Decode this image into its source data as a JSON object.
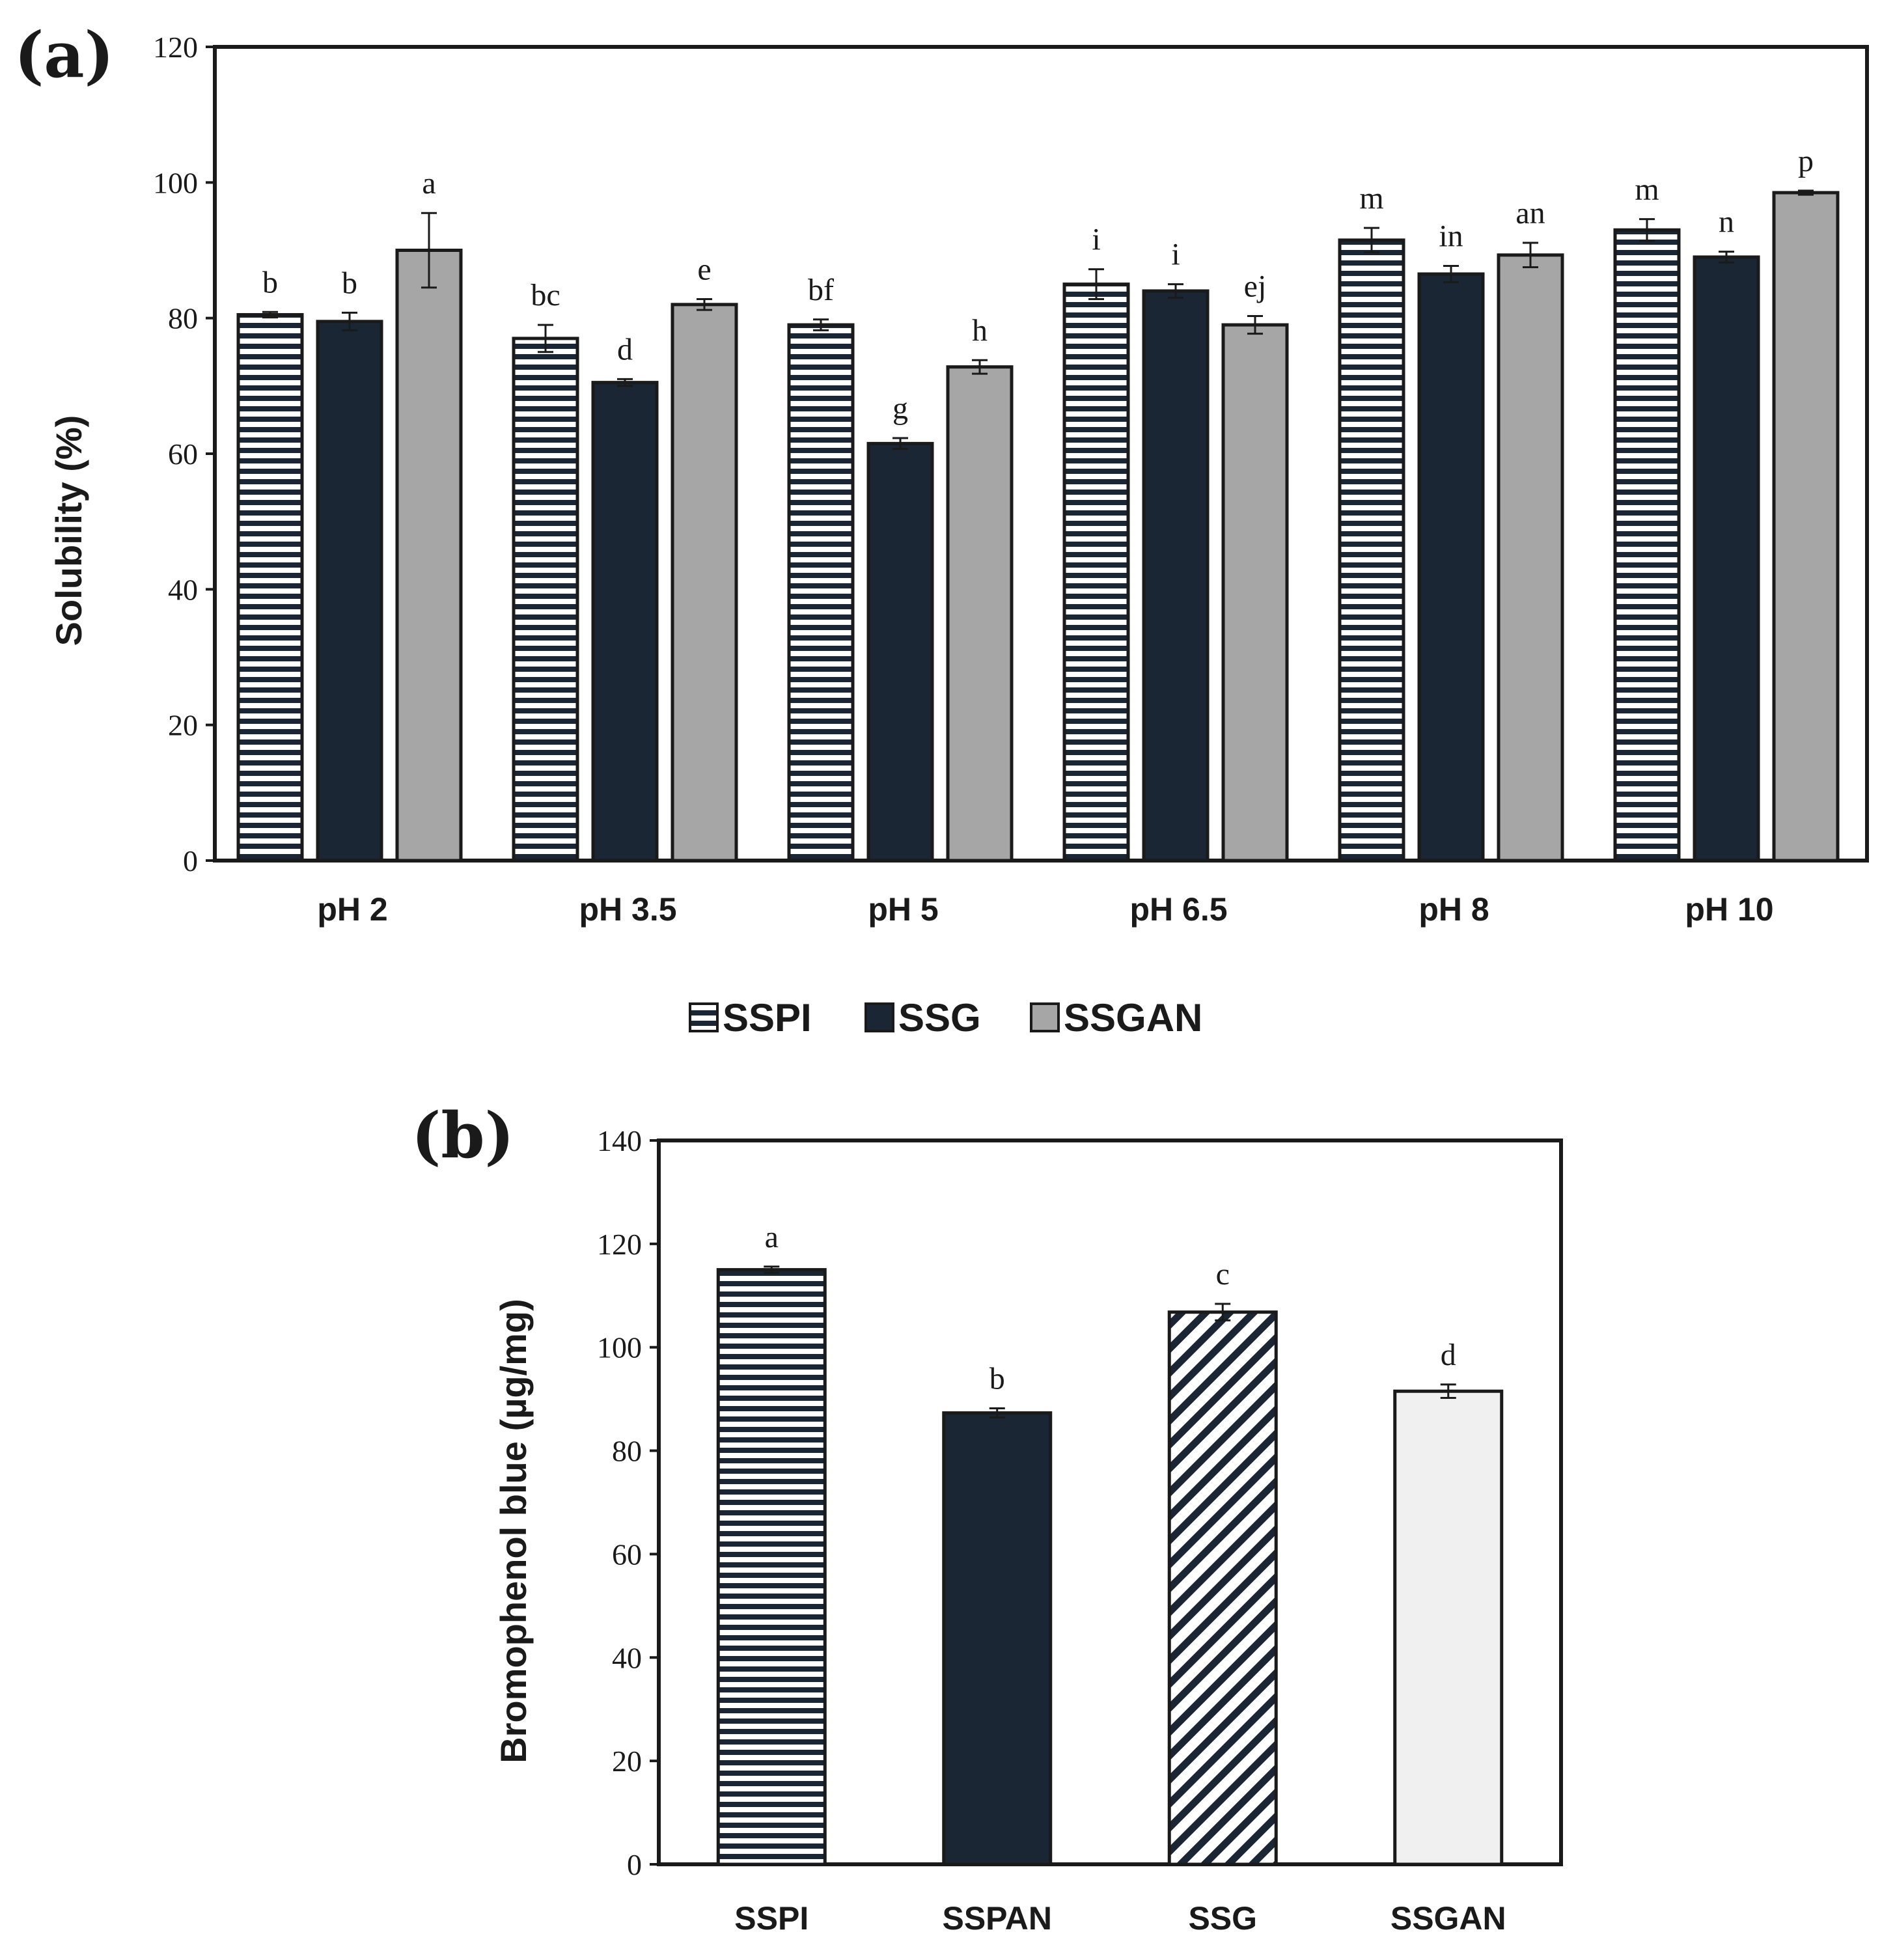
{
  "colors": {
    "ssg_dark": "#1b2634",
    "ssgan_gray": "#a6a6a6",
    "light_bar": "#f0f0f0",
    "stripe": "#1b2634",
    "ink": "#1a1a1a"
  },
  "chart_data": [
    {
      "id": "a",
      "panel_label": "(a)",
      "type": "bar",
      "ylabel": "Solubility (%)",
      "xlabel": "",
      "ylim": [
        0,
        120
      ],
      "yticks": [
        0,
        20,
        40,
        60,
        80,
        100,
        120
      ],
      "grid": false,
      "legend_position": "bottom",
      "categories": [
        "pH 2",
        "pH 3.5",
        "pH 5",
        "pH 6.5",
        "pH 8",
        "pH 10"
      ],
      "series": [
        {
          "name": "SSPI",
          "pattern": "horizontal-stripes",
          "values": [
            80.5,
            77.0,
            79.0,
            85.0,
            91.5,
            93.0
          ],
          "errors": [
            0.4,
            2.0,
            0.8,
            2.2,
            1.8,
            1.6
          ],
          "letters": [
            "b",
            "bc",
            "bf",
            "i",
            "m",
            "m"
          ]
        },
        {
          "name": "SSG",
          "pattern": "solid-dark",
          "values": [
            79.5,
            70.5,
            61.5,
            84.0,
            86.5,
            89.0
          ],
          "errors": [
            1.3,
            0.5,
            0.8,
            1.0,
            1.2,
            0.8
          ],
          "letters": [
            "b",
            "d",
            "g",
            "i",
            "in",
            "n"
          ]
        },
        {
          "name": "SSGAN",
          "pattern": "solid-gray",
          "values": [
            90.0,
            82.0,
            72.8,
            79.0,
            89.3,
            98.5
          ],
          "errors": [
            5.5,
            0.8,
            1.0,
            1.3,
            1.8,
            0.3
          ],
          "letters": [
            "a",
            "e",
            "h",
            "ej",
            "an",
            "p"
          ]
        }
      ]
    },
    {
      "id": "b",
      "panel_label": "(b)",
      "type": "bar",
      "ylabel": "Bromophenol blue (µg/mg)",
      "xlabel": "",
      "ylim": [
        0,
        140
      ],
      "yticks": [
        0,
        20,
        40,
        60,
        80,
        100,
        120,
        140
      ],
      "grid": false,
      "categories": [
        "SSPI",
        "SSPAN",
        "SSG",
        "SSGAN"
      ],
      "values": [
        115.0,
        87.3,
        106.8,
        91.5
      ],
      "errors": [
        0.6,
        0.9,
        1.6,
        1.3
      ],
      "letters": [
        "a",
        "b",
        "c",
        "d"
      ],
      "patterns": [
        "horizontal-stripes",
        "solid-dark",
        "diagonal-stripes",
        "solid-light"
      ]
    }
  ]
}
